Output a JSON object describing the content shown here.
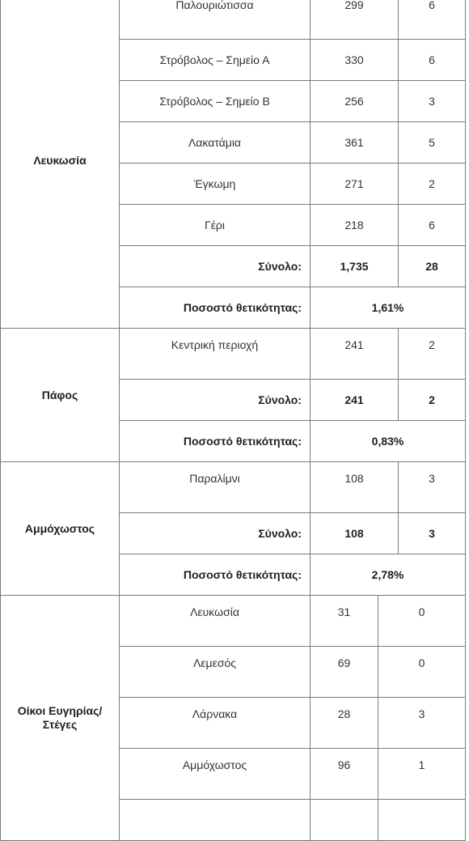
{
  "regions": {
    "nicosia": {
      "name": "Λευκωσία",
      "rows": [
        {
          "place": "Παλουριώτισσα",
          "tests": "299",
          "positive": "6"
        },
        {
          "place": "Στρόβολος – Σημείο Α",
          "tests": "330",
          "positive": "6"
        },
        {
          "place": "Στρόβολος – Σημείο Β",
          "tests": "256",
          "positive": "3"
        },
        {
          "place": "Λακατάμια",
          "tests": "361",
          "positive": "5"
        },
        {
          "place": "Έγκωμη",
          "tests": "271",
          "positive": "2"
        },
        {
          "place": "Γέρι",
          "tests": "218",
          "positive": "6"
        }
      ],
      "total_label": "Σύνολο:",
      "total_tests": "1,735",
      "total_positive": "28",
      "rate_label": "Ποσοστό θετικότητας:",
      "rate": "1,61%"
    },
    "paphos": {
      "name": "Πάφος",
      "rows": [
        {
          "place": "Κεντρική περιοχή",
          "tests": "241",
          "positive": "2"
        }
      ],
      "total_label": "Σύνολο:",
      "total_tests": "241",
      "total_positive": "2",
      "rate_label": "Ποσοστό θετικότητας:",
      "rate": "0,83%"
    },
    "famagusta": {
      "name": "Αμμόχωστος",
      "rows": [
        {
          "place": "Παραλίμνι",
          "tests": "108",
          "positive": "3"
        }
      ],
      "total_label": "Σύνολο:",
      "total_tests": "108",
      "total_positive": "3",
      "rate_label": "Ποσοστό θετικότητας:",
      "rate": "2,78%"
    },
    "care_homes": {
      "name": "Οίκοι Ευγηρίας/ Στέγες",
      "rows": [
        {
          "place": "Λευκωσία",
          "tests": "31",
          "positive": "0"
        },
        {
          "place": "Λεμεσός",
          "tests": "69",
          "positive": "0"
        },
        {
          "place": "Λάρνακα",
          "tests": "28",
          "positive": "3"
        },
        {
          "place": "Αμμόχωστος",
          "tests": "96",
          "positive": "1"
        }
      ]
    }
  }
}
